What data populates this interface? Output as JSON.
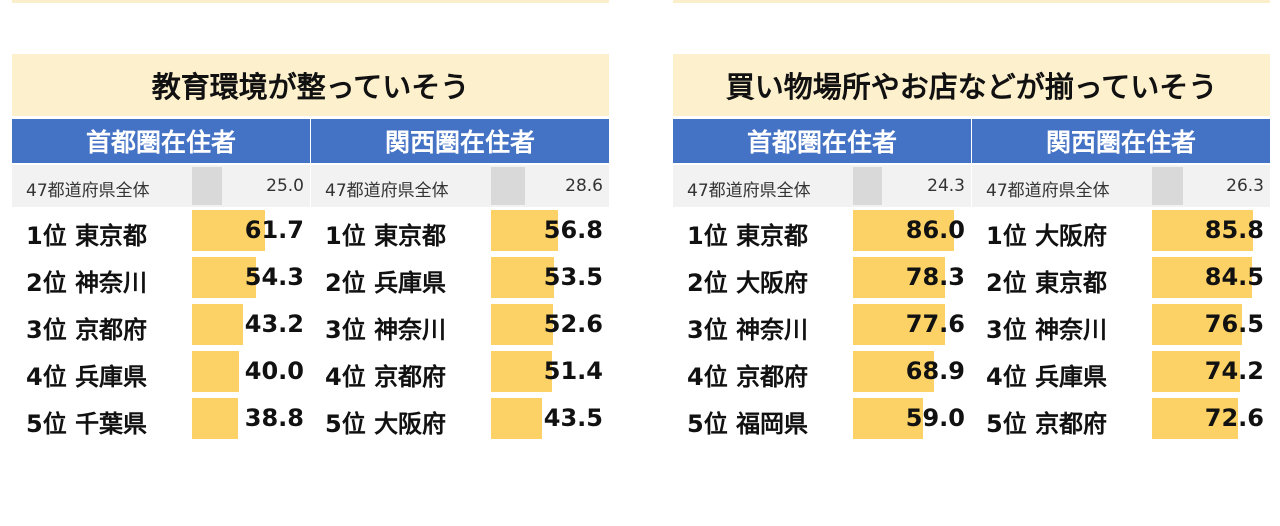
{
  "chart_data": [
    {
      "type": "bar",
      "title": "教育環境が整っていそう",
      "xlim": [
        0,
        100
      ],
      "groups": [
        {
          "header": "首都圏在住者",
          "average": {
            "label": "47都道府県全体",
            "value": 25.0
          },
          "ranks": [
            {
              "rank": "1位",
              "name": "東京都",
              "value": 61.7
            },
            {
              "rank": "2位",
              "name": "神奈川",
              "value": 54.3
            },
            {
              "rank": "3位",
              "name": "京都府",
              "value": 43.2
            },
            {
              "rank": "4位",
              "name": "兵庫県",
              "value": 40.0
            },
            {
              "rank": "5位",
              "name": "千葉県",
              "value": 38.8
            }
          ]
        },
        {
          "header": "関西圏在住者",
          "average": {
            "label": "47都道府県全体",
            "value": 28.6
          },
          "ranks": [
            {
              "rank": "1位",
              "name": "東京都",
              "value": 56.8
            },
            {
              "rank": "2位",
              "name": "兵庫県",
              "value": 53.5
            },
            {
              "rank": "3位",
              "name": "神奈川",
              "value": 52.6
            },
            {
              "rank": "4位",
              "name": "京都府",
              "value": 51.4
            },
            {
              "rank": "5位",
              "name": "大阪府",
              "value": 43.5
            }
          ]
        }
      ]
    },
    {
      "type": "bar",
      "title": "買い物場所やお店などが揃っていそう",
      "xlim": [
        0,
        100
      ],
      "groups": [
        {
          "header": "首都圏在住者",
          "average": {
            "label": "47都道府県全体",
            "value": 24.3
          },
          "ranks": [
            {
              "rank": "1位",
              "name": "東京都",
              "value": 86.0
            },
            {
              "rank": "2位",
              "name": "大阪府",
              "value": 78.3
            },
            {
              "rank": "3位",
              "name": "神奈川",
              "value": 77.6
            },
            {
              "rank": "4位",
              "name": "京都府",
              "value": 68.9
            },
            {
              "rank": "5位",
              "name": "福岡県",
              "value": 59.0
            }
          ]
        },
        {
          "header": "関西圏在住者",
          "average": {
            "label": "47都道府県全体",
            "value": 26.3
          },
          "ranks": [
            {
              "rank": "1位",
              "name": "大阪府",
              "value": 85.8
            },
            {
              "rank": "2位",
              "name": "東京都",
              "value": 84.5
            },
            {
              "rank": "3位",
              "name": "神奈川",
              "value": 76.5
            },
            {
              "rank": "4位",
              "name": "兵庫県",
              "value": 74.2
            },
            {
              "rank": "5位",
              "name": "京都府",
              "value": 72.6
            }
          ]
        }
      ]
    }
  ],
  "colors": {
    "header_bg": "#4472c4",
    "title_bg": "#fdf0cd",
    "bar": "#fcd266",
    "average_bar": "#d9d9d9"
  }
}
